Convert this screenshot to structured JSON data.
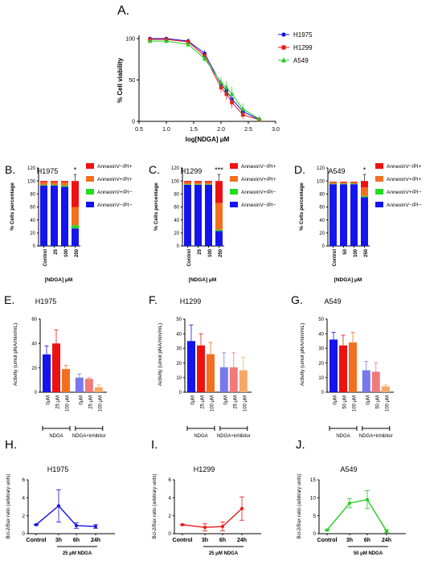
{
  "colors": {
    "h1975": "#1010e0",
    "h1299": "#e81818",
    "a549": "#22cc22",
    "annexin_late": "#ee1111",
    "annexin_early": "#f07020",
    "annexin_vpi": "#22dd22",
    "annexin_live": "#1414ee",
    "ndga": [
      "#1414ee",
      "#ee1111",
      "#f07020"
    ],
    "inhibitor": [
      "#7777ee",
      "#f07a7a",
      "#f6a766"
    ]
  },
  "panel_labels": [
    "A.",
    "B.",
    "C.",
    "D.",
    "E.",
    "F.",
    "G.",
    "H.",
    "I.",
    "J."
  ],
  "chart_data": [
    {
      "id": "A",
      "type": "line",
      "xlabel": "log[NDGA] μM",
      "ylabel": "% Cell viability",
      "xlim": [
        0.5,
        3.0
      ],
      "ylim": [
        0,
        100
      ],
      "xticks": [
        "0.5",
        "1.0",
        "1.5",
        "2.0",
        "2.5",
        "3.0"
      ],
      "yticks": [
        "0",
        "50",
        "100"
      ],
      "legend_position": "right",
      "series": [
        {
          "name": "H1975",
          "color": "#1010e0",
          "marker": "circle",
          "x": [
            0.7,
            1.0,
            1.4,
            1.7,
            2.0,
            2.1,
            2.2,
            2.4,
            2.7
          ],
          "y": [
            100,
            100,
            97,
            82,
            45,
            37,
            27,
            12,
            2
          ],
          "err": [
            2,
            2,
            3,
            4,
            6,
            8,
            8,
            6,
            2
          ]
        },
        {
          "name": "H1299",
          "color": "#e81818",
          "marker": "square",
          "x": [
            0.7,
            1.0,
            1.4,
            1.7,
            2.0,
            2.1,
            2.2,
            2.4,
            2.7
          ],
          "y": [
            99,
            99,
            96,
            79,
            41,
            33,
            23,
            8,
            2
          ],
          "err": [
            2,
            2,
            3,
            4,
            6,
            7,
            7,
            5,
            2
          ]
        },
        {
          "name": "A549",
          "color": "#22cc22",
          "marker": "triangle",
          "x": [
            0.7,
            1.0,
            1.4,
            1.7,
            2.0,
            2.1,
            2.2,
            2.4,
            2.7
          ],
          "y": [
            97,
            97,
            93,
            76,
            47,
            41,
            33,
            15,
            3
          ],
          "err": [
            2,
            2,
            3,
            4,
            7,
            8,
            9,
            7,
            3
          ]
        }
      ]
    },
    {
      "id": "B",
      "type": "bar",
      "stacked": true,
      "title": "H1975",
      "categories": [
        "Control",
        "25",
        "100",
        "250"
      ],
      "xlabel": "[NDGA] μM",
      "ylabel": "% Cells percentage",
      "ylim": [
        0,
        120
      ],
      "yticks": [
        "0",
        "20",
        "40",
        "60",
        "80",
        "100",
        "120"
      ],
      "significance": {
        "category": "250",
        "label": "*"
      },
      "series": [
        {
          "name": "AnnexinV−/PI−",
          "values": [
            93,
            93,
            91,
            27
          ]
        },
        {
          "name": "AnnexinV+/PI−",
          "values": [
            1,
            1,
            2,
            5
          ]
        },
        {
          "name": "AnnexinV+/PI+",
          "values": [
            4,
            4,
            5,
            28
          ]
        },
        {
          "name": "AnnexinV−/PI+",
          "values": [
            2,
            2,
            2,
            40
          ]
        }
      ],
      "legend": [
        "AnnexinV−/PI+",
        "AnnexinV+/PI+",
        "AnnexinV+/PI−",
        "AnnexinV−/PI−"
      ]
    },
    {
      "id": "C",
      "type": "bar",
      "stacked": true,
      "title": "H1299",
      "categories": [
        "Control",
        "25",
        "100",
        "250"
      ],
      "xlabel": "[NDGA] μM",
      "ylabel": "% Cells percentage",
      "ylim": [
        0,
        120
      ],
      "yticks": [
        "0",
        "20",
        "40",
        "60",
        "80",
        "100",
        "120"
      ],
      "significance": {
        "category": "250",
        "label": "***"
      },
      "series": [
        {
          "name": "AnnexinV−/PI−",
          "values": [
            94,
            94,
            94,
            23
          ]
        },
        {
          "name": "AnnexinV+/PI−",
          "values": [
            1,
            1,
            1,
            2
          ]
        },
        {
          "name": "AnnexinV+/PI+",
          "values": [
            3,
            3,
            3,
            41
          ]
        },
        {
          "name": "AnnexinV−/PI+",
          "values": [
            2,
            2,
            2,
            34
          ]
        }
      ],
      "legend": [
        "AnnexinV−/PI+",
        "AnnexinV+/PI+",
        "AnnexinV+/PI−",
        "AnnexinV−/PI−"
      ]
    },
    {
      "id": "D",
      "type": "bar",
      "stacked": true,
      "title": "A549",
      "categories": [
        "Control",
        "50",
        "100",
        "250"
      ],
      "xlabel": "[NDGA] μM",
      "ylabel": "% Cells percentage",
      "ylim": [
        0,
        120
      ],
      "yticks": [
        "0",
        "20",
        "40",
        "60",
        "80",
        "100",
        "120"
      ],
      "significance": {
        "category": "250",
        "label": "*"
      },
      "series": [
        {
          "name": "AnnexinV−/PI−",
          "values": [
            95,
            95,
            95,
            75
          ]
        },
        {
          "name": "AnnexinV+/PI−",
          "values": [
            1,
            1,
            1,
            2
          ]
        },
        {
          "name": "AnnexinV+/PI+",
          "values": [
            2,
            2,
            2,
            13
          ]
        },
        {
          "name": "AnnexinV−/PI+",
          "values": [
            1,
            1,
            1,
            10
          ]
        }
      ],
      "legend": [
        "AnnexinV−/PI+",
        "AnnexinV+/PI+",
        "AnnexinV+/PI−",
        "AnnexinV−/PI−"
      ]
    },
    {
      "id": "E",
      "type": "bar",
      "title": "H1975",
      "ylabel": "Activity (umol pNA/min/mL)",
      "ylim": [
        0,
        60
      ],
      "yticks": [
        "0",
        "20",
        "40",
        "60"
      ],
      "categories": [
        "0μM",
        "25 μM",
        "100 μM",
        "0μM",
        "25 μM",
        "100 μM"
      ],
      "values": [
        31,
        40,
        19,
        12,
        11,
        4
      ],
      "err": [
        7,
        11,
        3,
        3,
        1,
        2
      ],
      "groups": [
        "NDGA",
        "NDGA+inhibitor"
      ]
    },
    {
      "id": "F",
      "type": "bar",
      "title": "H1299",
      "ylabel": "Activity (umol pNA/min/mL)",
      "ylim": [
        0,
        50
      ],
      "yticks": [
        "0",
        "10",
        "20",
        "30",
        "40",
        "50"
      ],
      "categories": [
        "0μM",
        "25 μM",
        "100 μM",
        "0μM",
        "25 μM",
        "100 μM"
      ],
      "values": [
        35,
        32,
        26,
        17,
        17,
        15
      ],
      "err": [
        11,
        8,
        8,
        10,
        10,
        9
      ],
      "groups": [
        "NDGA",
        "NDGA+inhibitor"
      ]
    },
    {
      "id": "G",
      "type": "bar",
      "title": "A549",
      "ylabel": "Activity (umol pNA/min/mL)",
      "ylim": [
        0,
        50
      ],
      "yticks": [
        "0",
        "10",
        "20",
        "30",
        "40",
        "50"
      ],
      "categories": [
        "0μM",
        "50 μM",
        "100 μM",
        "0μM",
        "50 μM",
        "100 μM"
      ],
      "values": [
        36,
        32,
        34,
        15,
        14,
        4
      ],
      "err": [
        5,
        7,
        7,
        6,
        6,
        1
      ],
      "groups": [
        "NDGA",
        "NDGA+inhibitor"
      ]
    },
    {
      "id": "H",
      "type": "line",
      "title": "H1975",
      "ylabel": "Bcl-2/Bax ratio (arbitrary units)",
      "xlabel": "25 μM NDGA",
      "categories": [
        "Control",
        "3h",
        "6h",
        "24h"
      ],
      "ylim": [
        0,
        6
      ],
      "yticks": [
        "0",
        "2",
        "4",
        "6"
      ],
      "values": [
        1.0,
        3.1,
        0.9,
        0.8
      ],
      "err": [
        0.05,
        1.8,
        0.3,
        0.2
      ],
      "color": "#1010e0"
    },
    {
      "id": "I",
      "type": "line",
      "title": "H1299",
      "ylabel": "Bcl-2/Bax ratio (arbitrary units)",
      "xlabel": "25 μM NDGA",
      "categories": [
        "Control",
        "3h",
        "6h",
        "24h"
      ],
      "ylim": [
        0,
        6
      ],
      "yticks": [
        "0",
        "2",
        "4",
        "6"
      ],
      "values": [
        1.0,
        0.7,
        0.8,
        2.8
      ],
      "err": [
        0.05,
        0.4,
        0.5,
        1.3
      ],
      "color": "#e81818"
    },
    {
      "id": "J",
      "type": "line",
      "title": "A549",
      "ylabel": "Bcl-2/Bax ratio (arbitrary units)",
      "xlabel": "50 μM NDGA",
      "categories": [
        "Control",
        "3h",
        "6h",
        "24h"
      ],
      "ylim": [
        0,
        15
      ],
      "yticks": [
        "0",
        "5",
        "10",
        "15"
      ],
      "values": [
        1.0,
        8.5,
        9.5,
        0.7
      ],
      "err": [
        0.1,
        1.3,
        2.5,
        0.4
      ],
      "color": "#22cc22"
    }
  ]
}
